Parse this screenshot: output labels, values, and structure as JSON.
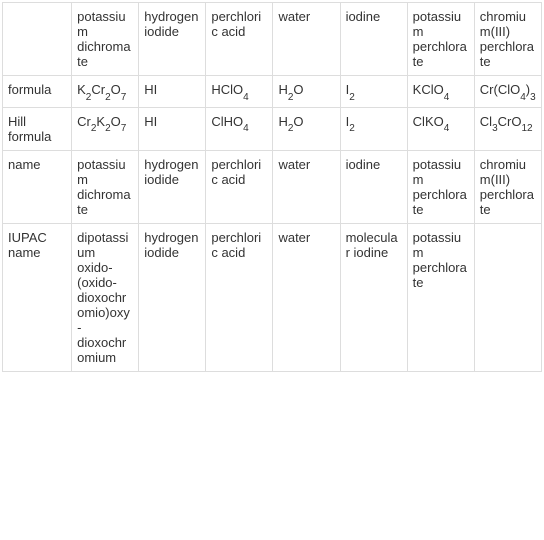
{
  "table": {
    "columns": [
      "",
      "potassium dichromate",
      "hydrogen iodide",
      "perchloric acid",
      "water",
      "iodine",
      "potassium perchlorate",
      "chromium(III) perchlorate"
    ],
    "rows": [
      {
        "label": "formula",
        "cells": [
          {
            "text": "K",
            "sub": "2",
            "text2": "Cr",
            "sub2": "2",
            "text3": "O",
            "sub3": "7"
          },
          {
            "text": "HI"
          },
          {
            "text": "HClO",
            "sub": "4"
          },
          {
            "text": "H",
            "sub": "2",
            "text2": "O"
          },
          {
            "text": "I",
            "sub": "2"
          },
          {
            "text": "KClO",
            "sub": "4"
          },
          {
            "text": "Cr(ClO",
            "sub": "4",
            "text2": ")",
            "sub2": "3"
          }
        ]
      },
      {
        "label": "Hill formula",
        "cells": [
          {
            "text": "Cr",
            "sub": "2",
            "text2": "K",
            "sub2": "2",
            "text3": "O",
            "sub3": "7"
          },
          {
            "text": "HI"
          },
          {
            "text": "ClHO",
            "sub": "4"
          },
          {
            "text": "H",
            "sub": "2",
            "text2": "O"
          },
          {
            "text": "I",
            "sub": "2"
          },
          {
            "text": "ClKO",
            "sub": "4"
          },
          {
            "text": "Cl",
            "sub": "3",
            "text2": "CrO",
            "sub2": "12"
          }
        ]
      },
      {
        "label": "name",
        "cells": [
          {
            "text": "potassium dichromate"
          },
          {
            "text": "hydrogen iodide"
          },
          {
            "text": "perchloric acid"
          },
          {
            "text": "water"
          },
          {
            "text": "iodine"
          },
          {
            "text": "potassium perchlorate"
          },
          {
            "text": "chromium(III) perchlorate"
          }
        ]
      },
      {
        "label": "IUPAC name",
        "cells": [
          {
            "text": "dipotassium oxido-(oxido-dioxochromio)oxy-dioxochromium"
          },
          {
            "text": "hydrogen iodide"
          },
          {
            "text": "perchloric acid"
          },
          {
            "text": "water"
          },
          {
            "text": "molecular iodine"
          },
          {
            "text": "potassium perchlorate"
          },
          {
            "text": ""
          }
        ]
      }
    ]
  }
}
